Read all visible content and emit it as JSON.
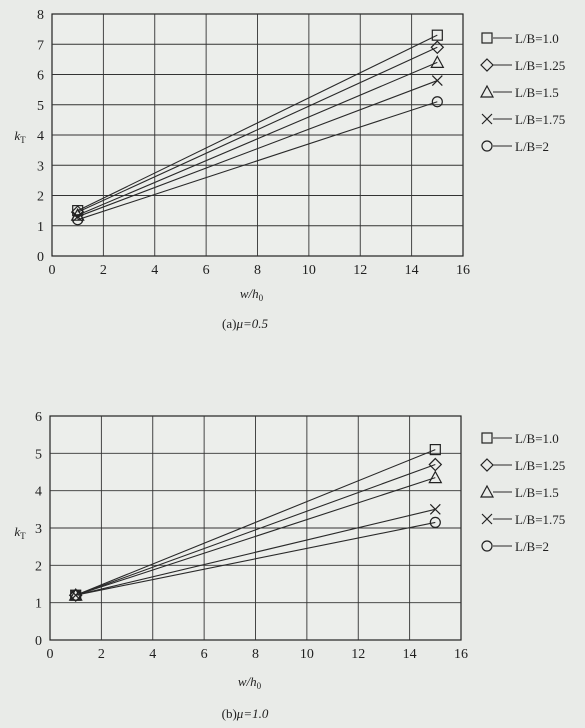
{
  "chart_data": [
    {
      "type": "line",
      "caption_prefix": "(a)",
      "caption_mu": "μ=0.5",
      "ylabel_main": "k",
      "ylabel_sub": "T",
      "xlabel_main": "w/h",
      "xlabel_sub": "0",
      "xlim": [
        0,
        16
      ],
      "ylim": [
        0,
        8
      ],
      "xticks": [
        0,
        2,
        4,
        6,
        8,
        10,
        12,
        14,
        16
      ],
      "yticks": [
        0,
        1,
        2,
        3,
        4,
        5,
        6,
        7,
        8
      ],
      "grid": true,
      "legend_position": "right",
      "series": [
        {
          "name": "L/B=1.0",
          "marker": "square",
          "x": [
            1,
            15
          ],
          "values": [
            1.5,
            7.3
          ]
        },
        {
          "name": "L/B=1.25",
          "marker": "diamond",
          "x": [
            1,
            15
          ],
          "values": [
            1.45,
            6.9
          ]
        },
        {
          "name": "L/B=1.5",
          "marker": "triangle",
          "x": [
            1,
            15
          ],
          "values": [
            1.35,
            6.4
          ]
        },
        {
          "name": "L/B=1.75",
          "marker": "cross",
          "x": [
            1,
            15
          ],
          "values": [
            1.3,
            5.8
          ]
        },
        {
          "name": "L/B=2",
          "marker": "circle",
          "x": [
            1,
            15
          ],
          "values": [
            1.2,
            5.1
          ]
        }
      ]
    },
    {
      "type": "line",
      "caption_prefix": "(b)",
      "caption_mu": "μ=1.0",
      "ylabel_main": "k",
      "ylabel_sub": "T",
      "xlabel_main": "w/h",
      "xlabel_sub": "0",
      "xlim": [
        0,
        16
      ],
      "ylim": [
        0,
        6
      ],
      "xticks": [
        0,
        2,
        4,
        6,
        8,
        10,
        12,
        14,
        16
      ],
      "yticks": [
        0,
        1,
        2,
        3,
        4,
        5,
        6
      ],
      "grid": true,
      "legend_position": "right",
      "series": [
        {
          "name": "L/B=1.0",
          "marker": "square",
          "x": [
            1,
            15
          ],
          "values": [
            1.2,
            5.1
          ]
        },
        {
          "name": "L/B=1.25",
          "marker": "diamond",
          "x": [
            1,
            15
          ],
          "values": [
            1.2,
            4.7
          ]
        },
        {
          "name": "L/B=1.5",
          "marker": "triangle",
          "x": [
            1,
            15
          ],
          "values": [
            1.2,
            4.35
          ]
        },
        {
          "name": "L/B=1.75",
          "marker": "cross",
          "x": [
            1,
            15
          ],
          "values": [
            1.2,
            3.5
          ]
        },
        {
          "name": "L/B=2",
          "marker": "circle",
          "x": [
            1,
            15
          ],
          "values": [
            1.2,
            3.15
          ]
        }
      ]
    }
  ]
}
